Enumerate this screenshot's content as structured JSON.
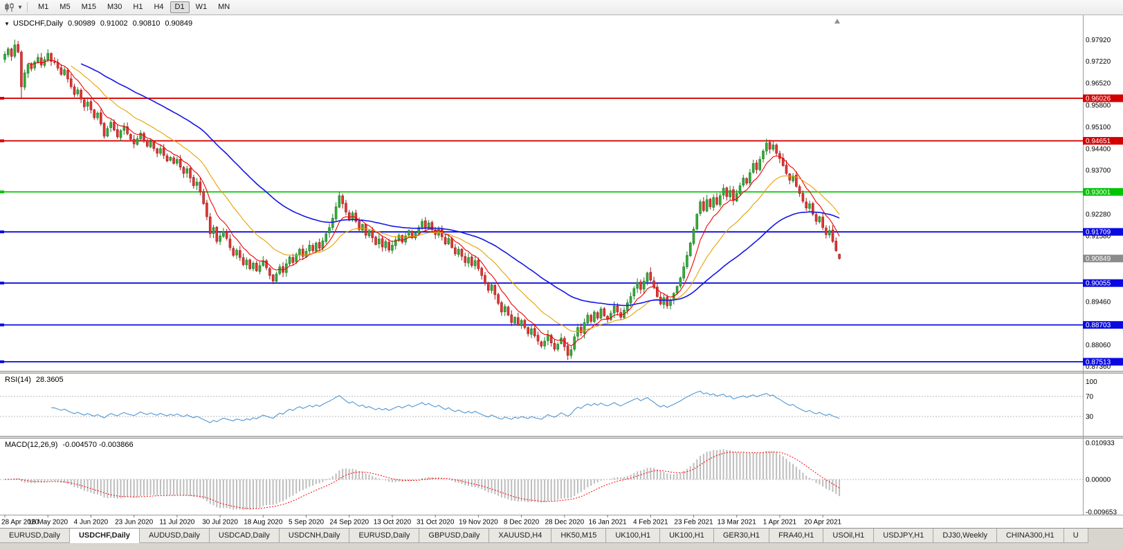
{
  "toolbar": {
    "timeframes": [
      "M1",
      "M5",
      "M15",
      "M30",
      "H1",
      "H4",
      "D1",
      "W1",
      "MN"
    ],
    "active_timeframe": "D1"
  },
  "chart_data": {
    "type": "candlestick",
    "symbol": "USDCHF",
    "timeframe": "Daily",
    "title": {
      "symbol": "USDCHF,Daily",
      "open": "0.90989",
      "high": "0.91002",
      "low": "0.90810",
      "close": "0.90849"
    },
    "ohlc_last": {
      "open": 0.90989,
      "high": 0.91002,
      "low": 0.9081,
      "close": 0.90849
    },
    "closes": [
      0.9745,
      0.9762,
      0.9738,
      0.9775,
      0.9752,
      0.964,
      0.9685,
      0.9712,
      0.9698,
      0.972,
      0.9735,
      0.971,
      0.9728,
      0.9748,
      0.9722,
      0.972,
      0.97,
      0.968,
      0.9695,
      0.9665,
      0.964,
      0.9615,
      0.963,
      0.96,
      0.9575,
      0.959,
      0.9565,
      0.954,
      0.9555,
      0.952,
      0.948,
      0.9505,
      0.9525,
      0.95,
      0.9478,
      0.9498,
      0.9512,
      0.9488,
      0.947,
      0.9455,
      0.9472,
      0.949,
      0.9465,
      0.9448,
      0.9462,
      0.944,
      0.9425,
      0.944,
      0.9418,
      0.94,
      0.9412,
      0.9392,
      0.9405,
      0.938,
      0.936,
      0.9375,
      0.9345,
      0.932,
      0.9332,
      0.93,
      0.9262,
      0.922,
      0.9165,
      0.9185,
      0.914,
      0.9158,
      0.9172,
      0.915,
      0.912,
      0.9095,
      0.9112,
      0.9088,
      0.9065,
      0.908,
      0.9052,
      0.907,
      0.9045,
      0.9062,
      0.9078,
      0.9055,
      0.903,
      0.9012,
      0.9035,
      0.9058,
      0.904,
      0.9068,
      0.909,
      0.9072,
      0.9098,
      0.9115,
      0.9092,
      0.9108,
      0.9128,
      0.911,
      0.9135,
      0.9118,
      0.9142,
      0.9165,
      0.9185,
      0.9215,
      0.9252,
      0.9288,
      0.9262,
      0.9235,
      0.921,
      0.9232,
      0.9205,
      0.9178,
      0.9195,
      0.916,
      0.9175,
      0.9152,
      0.913,
      0.9148,
      0.9122,
      0.914,
      0.9112,
      0.9128,
      0.9145,
      0.916,
      0.9138,
      0.9158,
      0.9175,
      0.9152,
      0.9168,
      0.9185,
      0.9205,
      0.9182,
      0.92,
      0.9178,
      0.9162,
      0.918,
      0.9155,
      0.9132,
      0.915,
      0.912,
      0.91,
      0.9115,
      0.9092,
      0.9072,
      0.9088,
      0.9062,
      0.9078,
      0.9052,
      0.903,
      0.9005,
      0.8982,
      0.9,
      0.8968,
      0.894,
      0.8912,
      0.893,
      0.8902,
      0.8878,
      0.8895,
      0.887,
      0.8885,
      0.8862,
      0.8842,
      0.8858,
      0.8835,
      0.8818,
      0.8802,
      0.8818,
      0.8838,
      0.8812,
      0.8792,
      0.8808,
      0.8828,
      0.88,
      0.8772,
      0.879,
      0.8832,
      0.8862,
      0.8845,
      0.8878,
      0.8902,
      0.8882,
      0.8912,
      0.8892,
      0.8922,
      0.89,
      0.8888,
      0.8908,
      0.8932,
      0.8912,
      0.8895,
      0.8918,
      0.8942,
      0.8962,
      0.8988,
      0.9008,
      0.8985,
      0.9012,
      0.9038,
      0.9015,
      0.8992,
      0.8962,
      0.8938,
      0.8958,
      0.8932,
      0.8952,
      0.8972,
      0.8995,
      0.9022,
      0.9058,
      0.9095,
      0.9135,
      0.918,
      0.9228,
      0.9268,
      0.924,
      0.9275,
      0.9252,
      0.9282,
      0.926,
      0.9288,
      0.9312,
      0.9285,
      0.9305,
      0.9272,
      0.9295,
      0.932,
      0.9345,
      0.9328,
      0.9362,
      0.9392,
      0.9372,
      0.9405,
      0.9432,
      0.9458,
      0.9438,
      0.9452,
      0.9425,
      0.9408,
      0.9385,
      0.936,
      0.9338,
      0.9352,
      0.9318,
      0.9295,
      0.927,
      0.9248,
      0.9262,
      0.9228,
      0.9205,
      0.922,
      0.9185,
      0.9162,
      0.9175,
      0.914,
      0.911,
      0.9085
    ],
    "spikes": {
      "3": {
        "h": 0.9792
      },
      "5": {
        "l": 0.9603
      },
      "101": {
        "h": 0.9301
      },
      "170": {
        "l": 0.8757
      },
      "230": {
        "h": 0.9472
      }
    },
    "price_axis_labels": [
      "0.97920",
      "0.97220",
      "0.96520",
      "0.95800",
      "0.95100",
      "0.94400",
      "0.93700",
      "0.92280",
      "0.91580",
      "0.89460",
      "0.88060",
      "0.87360"
    ],
    "hlines": [
      {
        "label": "0.96026",
        "color": "#d40000"
      },
      {
        "label": "0.94651",
        "color": "#d40000"
      },
      {
        "label": "0.93001",
        "color": "#00c400"
      },
      {
        "label": "0.91709",
        "color": "#0a0ae0"
      },
      {
        "label": "0.90055",
        "color": "#0a0ae0"
      },
      {
        "label": "0.88703",
        "color": "#0a0ae0"
      },
      {
        "label": "0.87513",
        "color": "#0a0ae0"
      }
    ],
    "bid_price_label": {
      "label": "0.90849",
      "color": "#8c8c8c"
    },
    "date_labels": [
      "28 Apr 2020",
      "16 May 2020",
      "4 Jun 2020",
      "23 Jun 2020",
      "11 Jul 2020",
      "30 Jul 2020",
      "18 Aug 2020",
      "5 Sep 2020",
      "24 Sep 2020",
      "13 Oct 2020",
      "31 Oct 2020",
      "19 Nov 2020",
      "8 Dec 2020",
      "28 Dec 2020",
      "16 Jan 2021",
      "4 Feb 2021",
      "23 Feb 2021",
      "13 Mar 2021",
      "1 Apr 2021",
      "20 Apr 2021"
    ],
    "moving_averages": [
      {
        "period": 8,
        "color": "#f00000"
      },
      {
        "period": 21,
        "color": "#e8a000"
      },
      {
        "period": 55,
        "color": "#1414e6"
      }
    ],
    "candle_colors": {
      "up": "#3aa93c",
      "up_dark": "#177d22",
      "down": "#df3838",
      "down_dark": "#a31414"
    },
    "rsi": {
      "label": "RSI(14)",
      "value": "28.3605",
      "period": 14,
      "axis_labels": [
        "100",
        "70",
        "30"
      ],
      "levels": [
        70,
        30
      ],
      "color": "#4f96d2"
    },
    "macd": {
      "label": "MACD(12,26,9)",
      "value": "-0.004570 -0.003866",
      "fast": 12,
      "slow": 26,
      "signal": 9,
      "axis_labels": [
        "0.010933",
        "0.00000",
        "-0.009653"
      ],
      "hist_color": "#bdbdbd",
      "signal_color": "#ff0000"
    }
  },
  "tabs": {
    "items": [
      "EURUSD,Daily",
      "USDCHF,Daily",
      "AUDUSD,Daily",
      "USDCAD,Daily",
      "USDCNH,Daily",
      "EURUSD,Daily",
      "GBPUSD,Daily",
      "XAUUSD,H4",
      "HK50,M15",
      "UK100,H1",
      "UK100,H1",
      "GER30,H1",
      "FRA40,H1",
      "USOil,H1",
      "USDJPY,H1",
      "DJ30,Weekly",
      "CHINA300,H1",
      "U"
    ],
    "active_index": 1
  }
}
